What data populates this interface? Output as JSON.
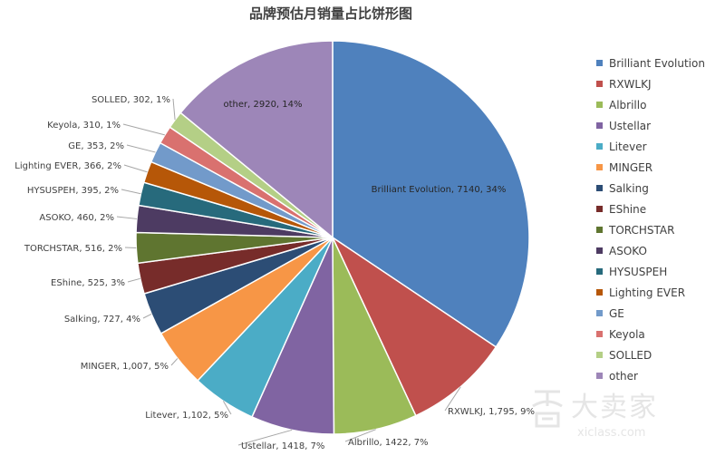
{
  "chart_data": {
    "type": "pie",
    "title": "品牌预估月销量占比饼形图",
    "start_angle_deg": 0,
    "direction": "clockwise",
    "legend_position": "right",
    "slices": [
      {
        "name": "Brilliant Evolution",
        "value": 7140,
        "label": "Brilliant Evolution, 7140, 34%",
        "color": "#4f81bd"
      },
      {
        "name": "RXWLKJ",
        "value": 1795,
        "label": "RXWLKJ, 1,795, 9%",
        "color": "#c0504d"
      },
      {
        "name": "Albrillo",
        "value": 1422,
        "label": "Albrillo, 1422, 7%",
        "color": "#9bbb59"
      },
      {
        "name": "Ustellar",
        "value": 1418,
        "label": "Ustellar, 1418, 7%",
        "color": "#8064a2"
      },
      {
        "name": "Litever",
        "value": 1102,
        "label": "Litever, 1,102, 5%",
        "color": "#4bacc6"
      },
      {
        "name": "MINGER",
        "value": 1007,
        "label": "MINGER, 1,007, 5%",
        "color": "#f79646"
      },
      {
        "name": "Salking",
        "value": 727,
        "label": "Salking, 727, 4%",
        "color": "#2c4d75"
      },
      {
        "name": "EShine",
        "value": 525,
        "label": "EShine, 525, 3%",
        "color": "#772c2a"
      },
      {
        "name": "TORCHSTAR",
        "value": 516,
        "label": "TORCHSTAR, 516, 2%",
        "color": "#5f7530"
      },
      {
        "name": "ASOKO",
        "value": 460,
        "label": "ASOKO, 460, 2%",
        "color": "#4d3b62"
      },
      {
        "name": "HYSUSPEH",
        "value": 395,
        "label": "HYSUSPEH, 395, 2%",
        "color": "#276a7c"
      },
      {
        "name": "Lighting EVER",
        "value": 366,
        "label": "Lighting EVER, 366, 2%",
        "color": "#b65708"
      },
      {
        "name": "GE",
        "value": 353,
        "label": "GE, 353, 2%",
        "color": "#729aca"
      },
      {
        "name": "Keyola",
        "value": 310,
        "label": "Keyola, 310, 1%",
        "color": "#d9716f"
      },
      {
        "name": "SOLLED",
        "value": 302,
        "label": "SOLLED, 302, 1%",
        "color": "#b4cf86"
      },
      {
        "name": "other",
        "value": 2920,
        "label": "other, 2920, 14%",
        "color": "#9d86b8"
      }
    ]
  },
  "watermark": {
    "logo_icon": "daimaijia-logo-icon",
    "text": "大卖家",
    "url": "xiclass.com"
  }
}
